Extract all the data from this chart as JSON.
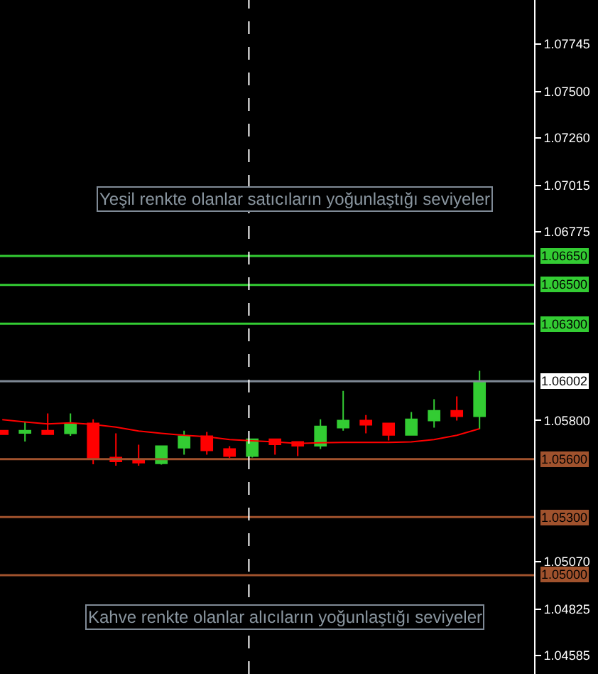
{
  "chart_data": {
    "type": "candlestick",
    "categories": [
      null,
      null,
      null,
      null,
      null,
      null,
      null,
      null,
      null,
      null,
      null,
      null,
      null,
      null,
      null,
      null,
      null,
      null,
      null,
      null,
      null,
      null
    ],
    "series": [
      {
        "ohlc": [
          [
            1.05747,
            1.05747,
            1.05728,
            1.05728
          ],
          [
            1.05735,
            1.05792,
            1.05691,
            1.05747
          ],
          [
            1.05747,
            1.05836,
            1.05728,
            1.05728
          ],
          [
            1.05733,
            1.05836,
            1.0572,
            1.05782
          ],
          [
            1.05784,
            1.05806,
            1.05573,
            1.05603
          ],
          [
            1.05608,
            1.05733,
            1.05566,
            1.05588
          ],
          [
            1.05596,
            1.05674,
            1.05566,
            1.05581
          ],
          [
            1.05578,
            1.05667,
            1.05571,
            1.05667
          ],
          [
            1.05659,
            1.05747,
            1.05623,
            1.05718
          ],
          [
            1.05718,
            1.0574,
            1.05623,
            1.05645
          ],
          [
            1.05652,
            1.05667,
            1.05605,
            1.05615
          ],
          [
            1.05615,
            1.05703,
            1.05608,
            1.05703
          ],
          [
            1.05703,
            1.05703,
            1.05623,
            1.05676
          ],
          [
            1.05689,
            1.05689,
            1.05615,
            1.05669
          ],
          [
            1.05669,
            1.05806,
            1.05652,
            1.05769
          ],
          [
            1.05762,
            1.05953,
            1.05747,
            1.05799
          ],
          [
            1.05799,
            1.05828,
            1.05733,
            1.05777
          ],
          [
            1.05784,
            1.05784,
            1.05696,
            1.05725
          ],
          [
            1.05725,
            1.05843,
            1.05725,
            1.05806
          ],
          [
            1.05799,
            1.05909,
            1.05762,
            1.0585
          ],
          [
            1.0585,
            1.05924,
            1.05799,
            1.05821
          ],
          [
            1.05821,
            1.06056,
            1.05755,
            1.05997
          ]
        ],
        "colors": [
          "#ff0000",
          "#33cc33",
          "#ff0000",
          "#33cc33",
          "#ff0000",
          "#ff0000",
          "#ff0000",
          "#33cc33",
          "#33cc33",
          "#ff0000",
          "#ff0000",
          "#33cc33",
          "#ff0000",
          "#ff0000",
          "#33cc33",
          "#33cc33",
          "#ff0000",
          "#ff0000",
          "#33cc33",
          "#33cc33",
          "#ff0000",
          "#33cc33"
        ]
      },
      {
        "type": "line",
        "color": "#ff0000",
        "values": [
          1.05804,
          1.05792,
          1.05782,
          1.05787,
          1.05779,
          1.05765,
          1.05745,
          1.05733,
          1.05723,
          1.05716,
          1.05701,
          1.05694,
          1.05689,
          1.05681,
          1.05684,
          1.05686,
          1.05686,
          1.05686,
          1.05689,
          1.05701,
          1.05723,
          1.05757
        ]
      }
    ],
    "ylim": [
      1.04489,
      1.07973
    ],
    "yticks": [
      1.07745,
      {
        "value": 1.075,
        "label": "1.07500"
      },
      {
        "value": 1.0726,
        "label": "1.07260"
      },
      1.07015,
      1.06775,
      {
        "value": 1.058,
        "label": "1.05800"
      },
      {
        "value": 1.0507,
        "label": "1.05070"
      },
      1.04825,
      1.04585
    ],
    "ref_lines": [
      {
        "axis": "y",
        "value": 1.0665,
        "label": "1.06650",
        "color": "#33cc33"
      },
      {
        "axis": "y",
        "value": 1.065,
        "label": "1.06500",
        "color": "#33cc33"
      },
      {
        "axis": "y",
        "value": 1.063,
        "label": "1.06300",
        "color": "#33cc33"
      },
      {
        "axis": "y",
        "value": 1.06002,
        "label": "1.06002",
        "color": "#7f8a96"
      },
      {
        "axis": "y",
        "value": 1.056,
        "label": "1.05600",
        "color": "#a0522d"
      },
      {
        "axis": "y",
        "value": 1.053,
        "label": "1.05300",
        "color": "#a0522d"
      },
      {
        "axis": "y",
        "value": 1.05,
        "label": "1.05000",
        "color": "#a0522d"
      }
    ],
    "annotations": [
      "Yeşil renkte olanlar satıcıların yoğunlaştığı seviyeler",
      "Kahve renkte olanlar alıcıların yoğunlaştığı seviyeler"
    ],
    "grid": false
  }
}
